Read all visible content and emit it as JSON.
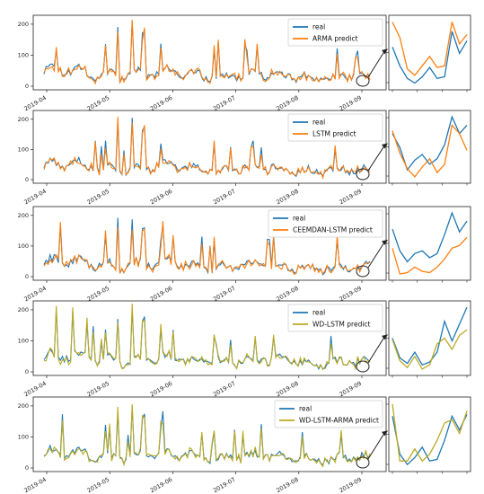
{
  "figure": {
    "colors": {
      "real": "#1f77b4",
      "orange": "#ff7f0e",
      "olive": "#bcaa22",
      "axis": "#222222",
      "connector": "#222222"
    }
  },
  "chart_data": [
    {
      "type": "line",
      "legend_position": "top-right",
      "ylim": [
        0,
        220
      ],
      "yticks": [
        "0",
        "100",
        "200"
      ],
      "xticks": [
        "2019-04",
        "2019-05",
        "2019-06",
        "2019-07",
        "2019-08",
        "2019-09"
      ],
      "series": [
        {
          "name": "real",
          "color": "#1f77b4"
        },
        {
          "name": "ARMA predict",
          "color": "#ff7f0e"
        }
      ],
      "zoom": {
        "real": [
          120,
          60,
          20,
          5,
          25,
          55,
          20,
          25,
          170,
          100,
          140
        ],
        "predict": [
          200,
          150,
          50,
          30,
          60,
          90,
          55,
          60,
          200,
          130,
          160
        ]
      }
    },
    {
      "type": "line",
      "legend_position": "top-right",
      "ylim": [
        0,
        220
      ],
      "yticks": [
        "0",
        "100",
        "200"
      ],
      "xticks": [
        "2019-04",
        "2019-05",
        "2019-06",
        "2019-07",
        "2019-08",
        "2019-09"
      ],
      "series": [
        {
          "name": "real",
          "color": "#1f77b4"
        },
        {
          "name": "LSTM predict",
          "color": "#ff7f0e"
        }
      ],
      "zoom": {
        "real": [
          150,
          100,
          20,
          55,
          75,
          40,
          60,
          110,
          210,
          150,
          180
        ],
        "predict": [
          160,
          80,
          25,
          -5,
          30,
          60,
          10,
          40,
          180,
          150,
          90
        ]
      }
    },
    {
      "type": "line",
      "legend_position": "top-right",
      "ylim": [
        0,
        220
      ],
      "yticks": [
        "0",
        "100",
        "200"
      ],
      "xticks": [
        "2019-04",
        "2019-05",
        "2019-06",
        "2019-07",
        "2019-08",
        "2019-09"
      ],
      "series": [
        {
          "name": "real",
          "color": "#1f77b4"
        },
        {
          "name": "CEEMDAN-LSTM predict",
          "color": "#ff7f0e"
        }
      ],
      "zoom": {
        "real": [
          150,
          70,
          30,
          60,
          70,
          45,
          60,
          130,
          210,
          140,
          180
        ],
        "predict": [
          80,
          -15,
          -10,
          10,
          -5,
          -10,
          10,
          40,
          80,
          90,
          120
        ]
      }
    },
    {
      "type": "line",
      "legend_position": "top-right",
      "ylim": [
        0,
        220
      ],
      "yticks": [
        "0",
        "100",
        "200"
      ],
      "xticks": [
        "2019-04",
        "2019-05",
        "2019-06",
        "2019-07",
        "2019-08",
        "2019-09"
      ],
      "series": [
        {
          "name": "real",
          "color": "#1f77b4"
        },
        {
          "name": "WD-LSTM predict",
          "color": "#bcaa22"
        }
      ],
      "zoom": {
        "real": [
          110,
          40,
          20,
          60,
          15,
          25,
          60,
          170,
          100,
          160,
          220
        ],
        "predict": [
          105,
          30,
          5,
          45,
          0,
          15,
          90,
          110,
          70,
          120,
          140
        ]
      }
    },
    {
      "type": "line",
      "legend_position": "top-right",
      "ylim": [
        0,
        220
      ],
      "yticks": [
        "0",
        "100",
        "200"
      ],
      "xticks": [
        "2019-04",
        "2019-05",
        "2019-06",
        "2019-07",
        "2019-08",
        "2019-09"
      ],
      "series": [
        {
          "name": "real",
          "color": "#1f77b4"
        },
        {
          "name": "WD-LSTM-ARMA predict",
          "color": "#bcaa22"
        }
      ],
      "zoom": {
        "real": [
          150,
          40,
          10,
          30,
          60,
          20,
          25,
          80,
          150,
          110,
          155
        ],
        "predict": [
          185,
          20,
          20,
          55,
          20,
          40,
          80,
          130,
          140,
          100,
          165
        ]
      }
    }
  ]
}
